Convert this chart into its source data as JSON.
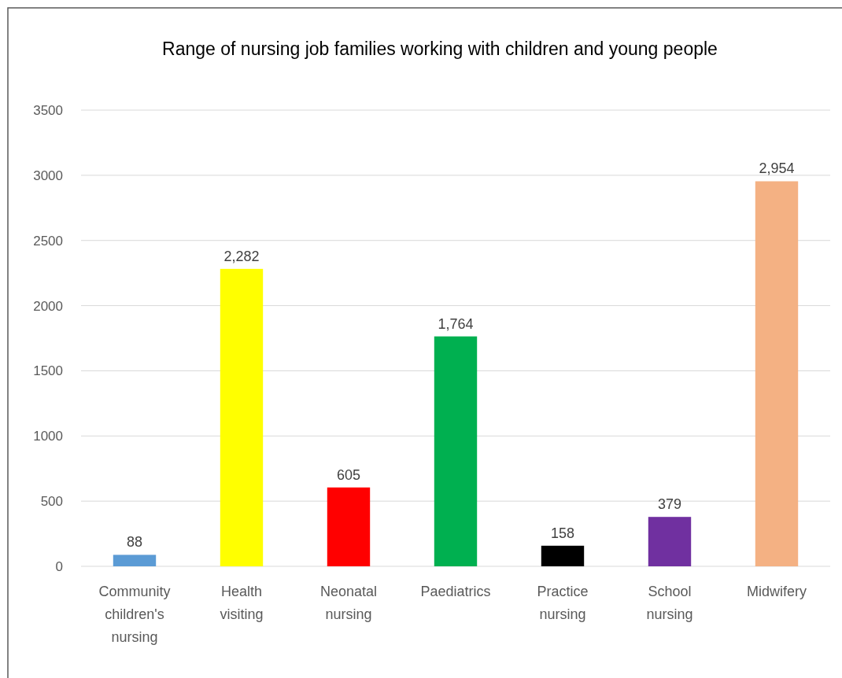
{
  "chart_data": {
    "type": "bar",
    "title": "Range of nursing job families working with children and young people",
    "categories": [
      "Community children's nursing",
      "Health visiting",
      "Neonatal nursing",
      "Paediatrics",
      "Practice nursing",
      "School nursing",
      "Midwifery"
    ],
    "values": [
      88,
      2282,
      605,
      1764,
      158,
      379,
      2954
    ],
    "colors": [
      "#5b9bd5",
      "#ffff00",
      "#ff0000",
      "#00b050",
      "#000000",
      "#7030a0",
      "#f4b183"
    ],
    "value_labels": [
      "88",
      "2,282",
      "605",
      "1,764",
      "158",
      "379",
      "2,954"
    ],
    "ylim": [
      0,
      3500
    ],
    "yticks": [
      0,
      500,
      1000,
      1500,
      2000,
      2500,
      3000,
      3500
    ],
    "grid": "y"
  }
}
